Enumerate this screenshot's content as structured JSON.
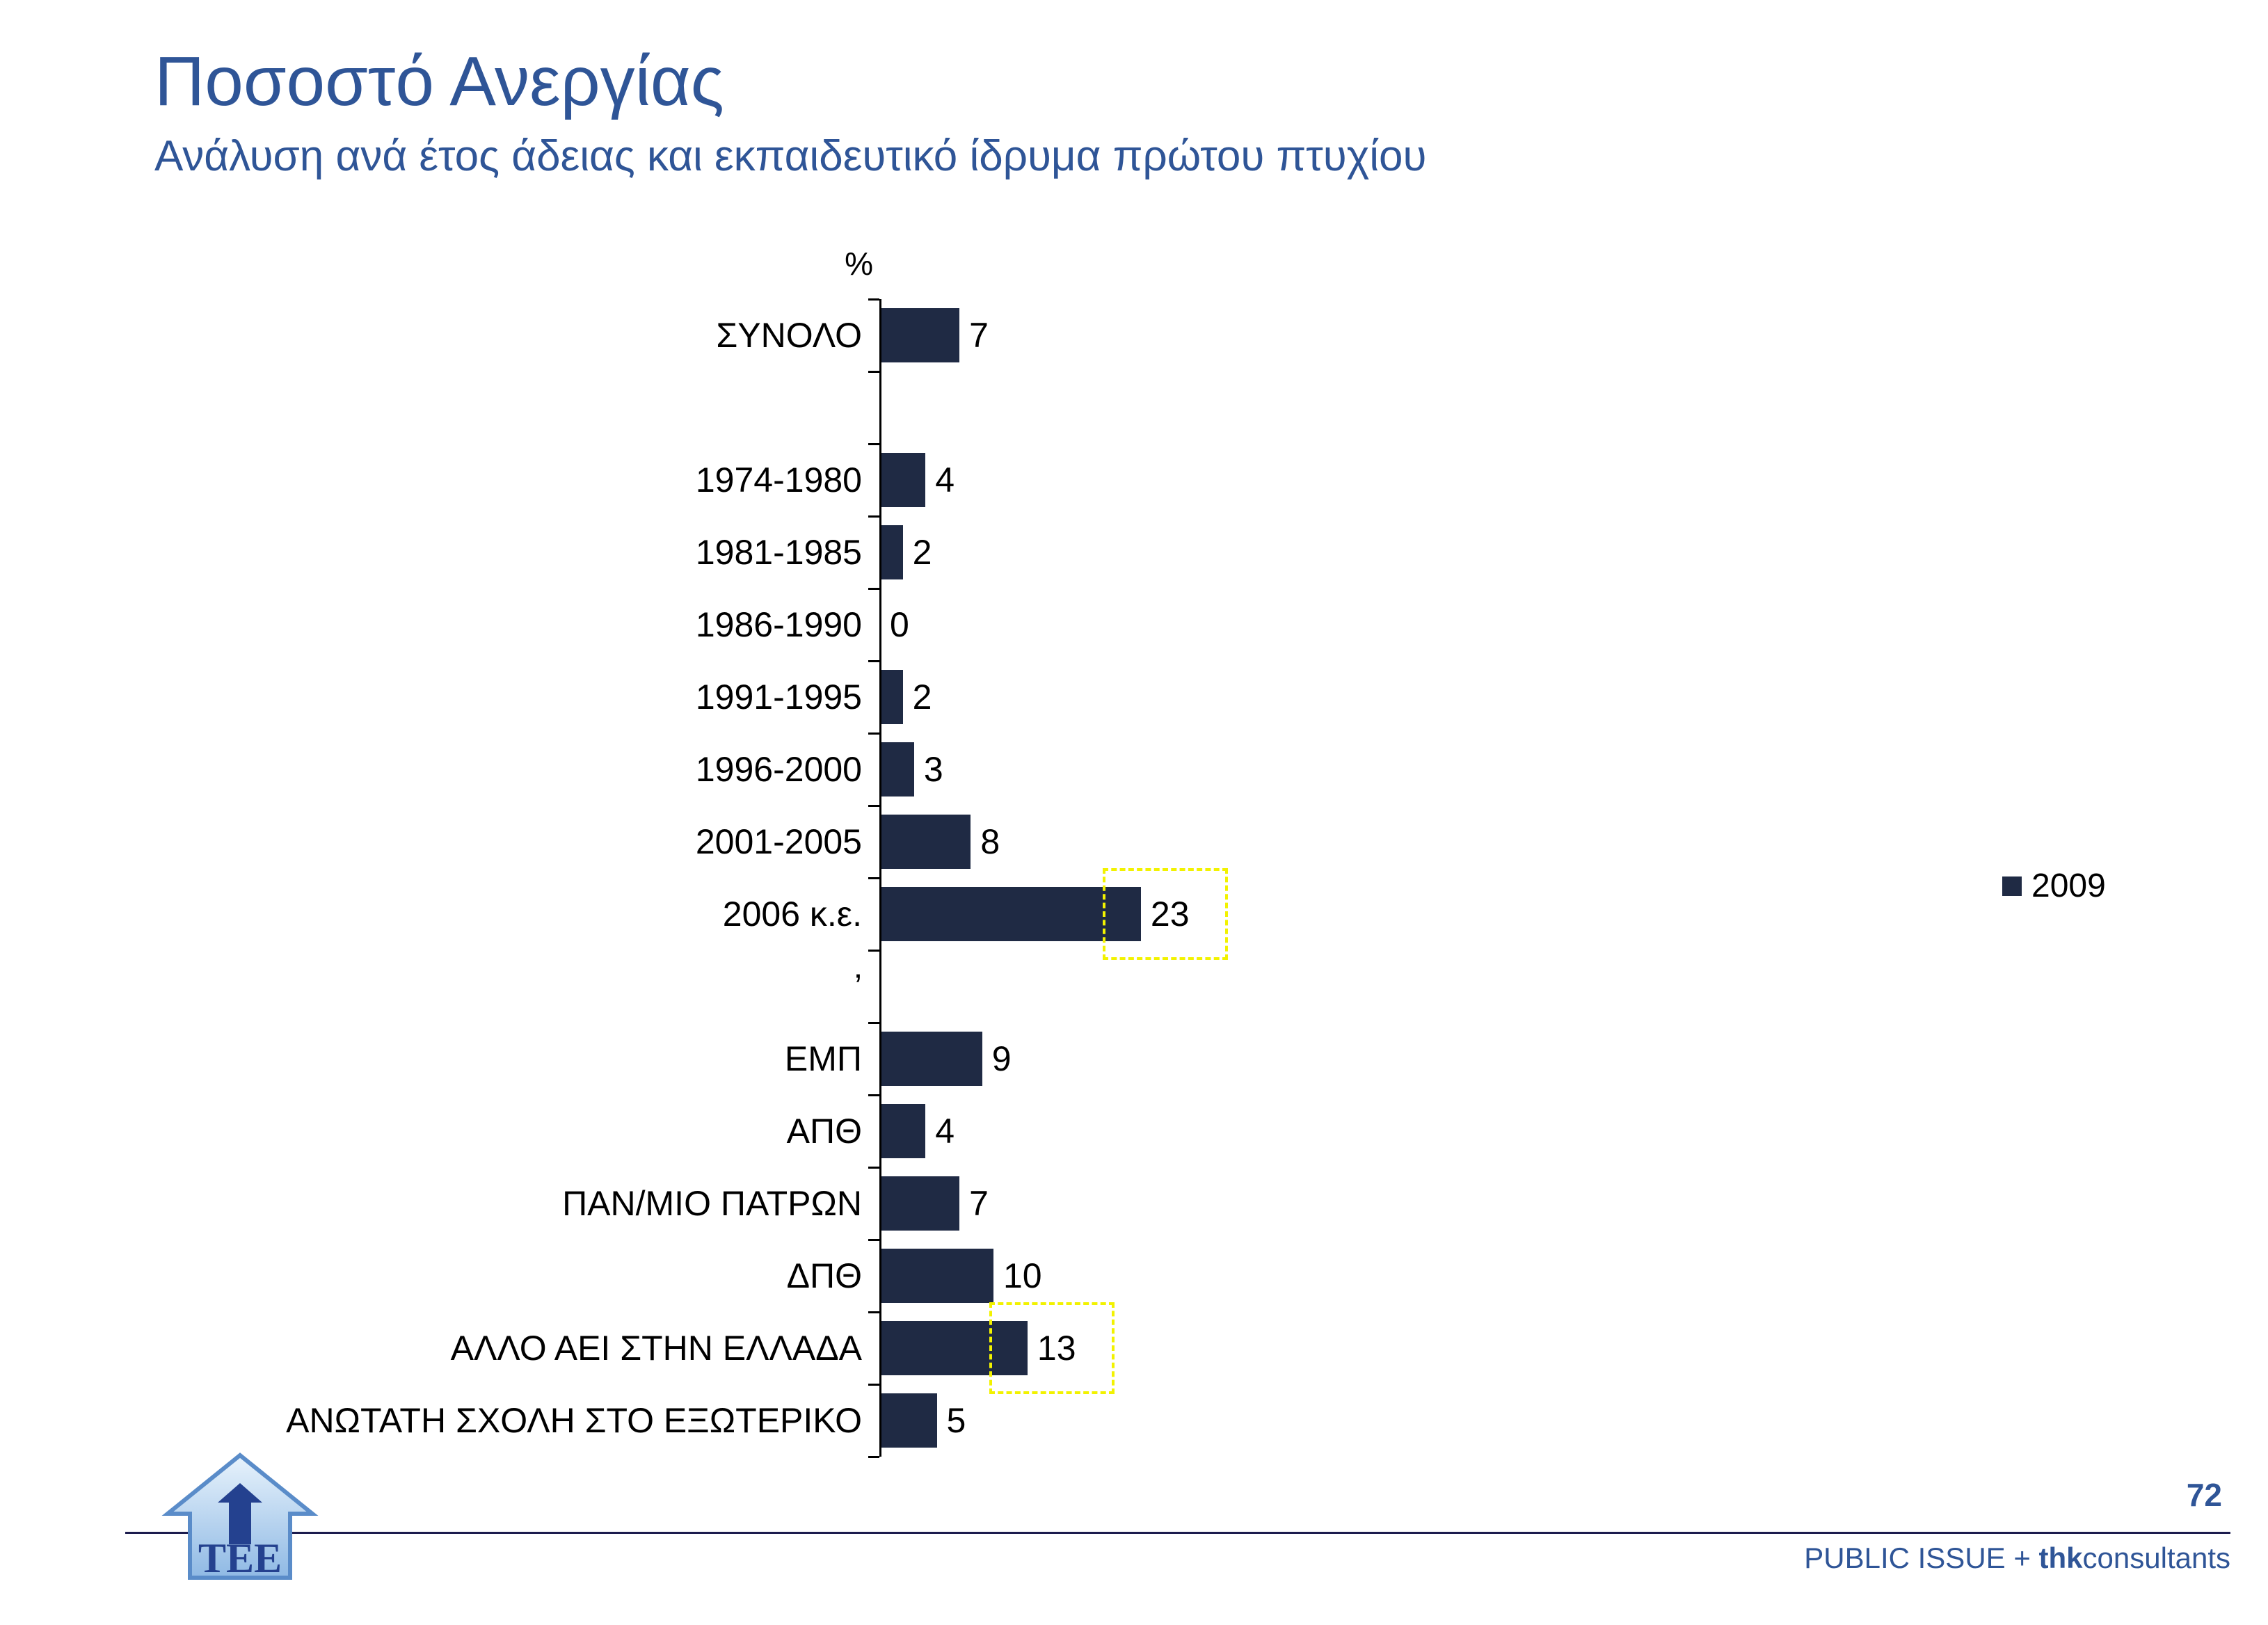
{
  "header": {
    "title": "Ποσοστό Ανεργίας",
    "subtitle": "Ανάλυση ανά έτος άδειας και εκπαιδευτικό ίδρυμα πρώτου πτυχίου"
  },
  "chart_data": {
    "type": "bar",
    "orientation": "horizontal",
    "title": "Ποσοστό Ανεργίας",
    "unit_label": "%",
    "xlim": [
      0,
      25
    ],
    "grid": false,
    "legend_position": "right",
    "legend": [
      {
        "label": "2009",
        "color": "#1f2a44"
      }
    ],
    "categories": [
      "ΣΥΝΟΛΟ",
      "1974-1980",
      "1981-1985",
      "1986-1990",
      "1991-1995",
      "1996-2000",
      "2001-2005",
      "2006 κ.ε.",
      "ΕΜΠ",
      "ΑΠΘ",
      "ΠΑΝ/ΜΙΟ ΠΑΤΡΩΝ",
      "ΔΠΘ",
      "ΑΛΛΟ ΑΕΙ ΣΤΗΝ ΕΛΛΑΔΑ",
      "ΑΝΩΤΑΤΗ ΣΧΟΛΗ ΣΤΟ ΕΞΩΤΕΡΙΚΟ"
    ],
    "values": [
      7,
      4,
      2,
      0,
      2,
      3,
      8,
      23,
      9,
      4,
      7,
      10,
      13,
      5
    ],
    "highlighted_categories": [
      "2006 κ.ε.",
      "ΑΛΛΟ ΑΕΙ ΣΤΗΝ ΕΛΛΑΔΑ"
    ],
    "rows": [
      {
        "label": "ΣΥΝΟΛΟ",
        "value": 7
      },
      {
        "type": "gap",
        "label": ""
      },
      {
        "label": "1974-1980",
        "value": 4
      },
      {
        "label": "1981-1985",
        "value": 2
      },
      {
        "label": "1986-1990",
        "value": 0
      },
      {
        "label": "1991-1995",
        "value": 2
      },
      {
        "label": "1996-2000",
        "value": 3
      },
      {
        "label": "2001-2005",
        "value": 8
      },
      {
        "label": "2006 κ.ε.",
        "value": 23,
        "highlight": true
      },
      {
        "type": "gap",
        "label": "’"
      },
      {
        "label": "ΕΜΠ",
        "value": 9
      },
      {
        "label": "ΑΠΘ",
        "value": 4
      },
      {
        "label": "ΠΑΝ/ΜΙΟ ΠΑΤΡΩΝ",
        "value": 7
      },
      {
        "label": "ΔΠΘ",
        "value": 10
      },
      {
        "label": "ΑΛΛΟ ΑΕΙ ΣΤΗΝ ΕΛΛΑΔΑ",
        "value": 13,
        "highlight": true
      },
      {
        "label": "ΑΝΩΤΑΤΗ ΣΧΟΛΗ ΣΤΟ ΕΞΩΤΕΡΙΚΟ",
        "value": 5
      }
    ]
  },
  "footer": {
    "page_number": "72",
    "brand_prefix": "PUBLIC ISSUE + ",
    "brand_bold": "thk",
    "brand_suffix": "consultants",
    "logo_text": "TEE"
  }
}
